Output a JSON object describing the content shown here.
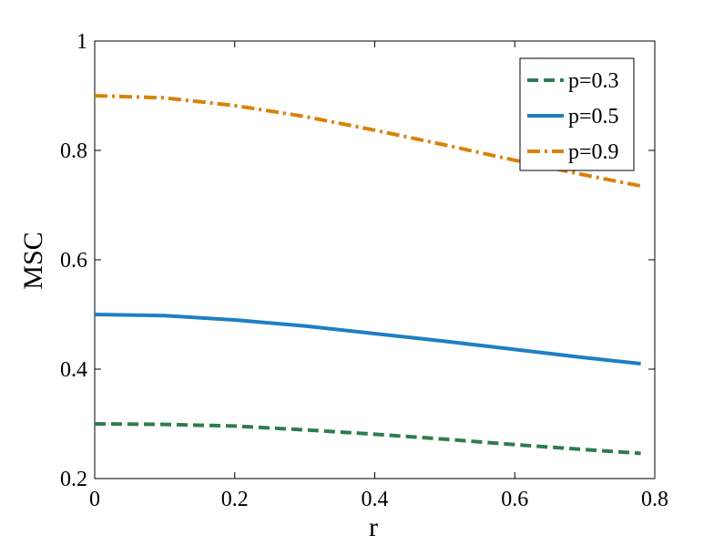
{
  "chart_data": {
    "type": "line",
    "title": "",
    "xlabel": "r",
    "ylabel": "MSC",
    "xlim": [
      0,
      0.8
    ],
    "ylim": [
      0.2,
      1.0
    ],
    "xticks": [
      0,
      0.2,
      0.4,
      0.6,
      0.8
    ],
    "yticks": [
      0.2,
      0.4,
      0.6,
      0.8,
      1.0
    ],
    "xtick_labels": [
      "0",
      "0.2",
      "0.4",
      "0.6",
      "0.8"
    ],
    "ytick_labels": [
      "0.2",
      "0.4",
      "0.6",
      "0.8",
      "1"
    ],
    "grid": false,
    "legend_position": "top-right",
    "x": [
      0,
      0.1,
      0.2,
      0.3,
      0.4,
      0.5,
      0.6,
      0.7,
      0.78
    ],
    "series": [
      {
        "name": "p=0.3",
        "color": "#2e7d4f",
        "style": "dashed",
        "values": [
          0.3,
          0.299,
          0.296,
          0.289,
          0.281,
          0.272,
          0.262,
          0.253,
          0.246
        ]
      },
      {
        "name": "p=0.5",
        "color": "#1f7fc4",
        "style": "solid",
        "values": [
          0.5,
          0.498,
          0.49,
          0.479,
          0.465,
          0.451,
          0.436,
          0.421,
          0.41
        ]
      },
      {
        "name": "p=0.9",
        "color": "#d9820a",
        "style": "dashdot",
        "values": [
          0.9,
          0.896,
          0.882,
          0.862,
          0.837,
          0.81,
          0.782,
          0.755,
          0.735
        ]
      }
    ]
  }
}
